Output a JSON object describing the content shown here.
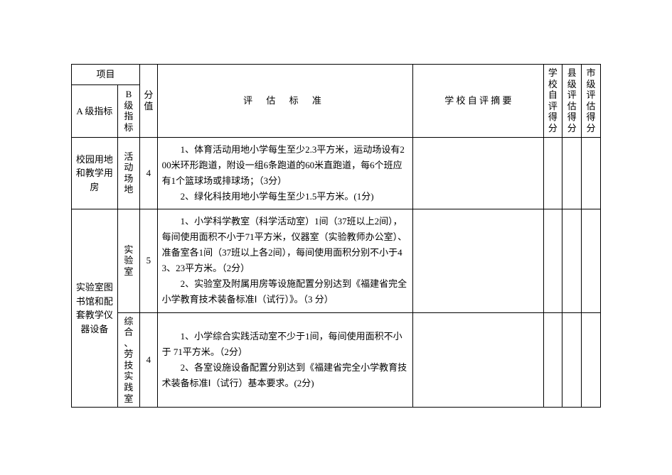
{
  "header": {
    "project": "项目",
    "a_level": "A 级指标",
    "b_level": "B级指标",
    "score_col": "分值",
    "criteria": "评 估 标 准",
    "self_summary": "学 校 自 评 摘 要",
    "school_score": "学校自评得分",
    "county_score": "县级评估得分",
    "city_score": "市级评估得分"
  },
  "rows": {
    "r1": {
      "a": "校园用地和教学用房",
      "b": "活动场地",
      "sc": "4",
      "crit": "　　1、体育活动用地小学每生至少2.3平方米，运动场设有200米环形跑道，附设一组6条跑道的60米直跑道，每6个班应有1个篮球场或排球场；（3分）\n　　2、绿化科技用地小学每生至少1.5平方米。(1分)"
    },
    "r2": {
      "a": "实验室图书馆和配套教学仪器设备",
      "b": "实验室",
      "sc": "5",
      "crit": "　　1、小学科学教室（科学活动室）1间（37班以上2间），每间使用面积不小于71平方米，仪器室（实验教师办公室）、准备室各1间（37班以上各2间），每间使用面积分别不小于43、23平方米。（2分）\n　　2、实验室及附属用房等设施配置分别达到《福建省完全小学教育技术装备标准Ⅰ（试行）》。（3 分）"
    },
    "r3": {
      "b": "综合、劳技实践室",
      "sc": "4",
      "crit": "　　1、小学综合实践活动室不少于1间，每间使用面积不小于 71平方米。（2分）\n　　2、各室设施设备配置分别达到《福建省完全小学教育技术装备标准Ⅰ（试行）基本要求。(2分)"
    }
  }
}
